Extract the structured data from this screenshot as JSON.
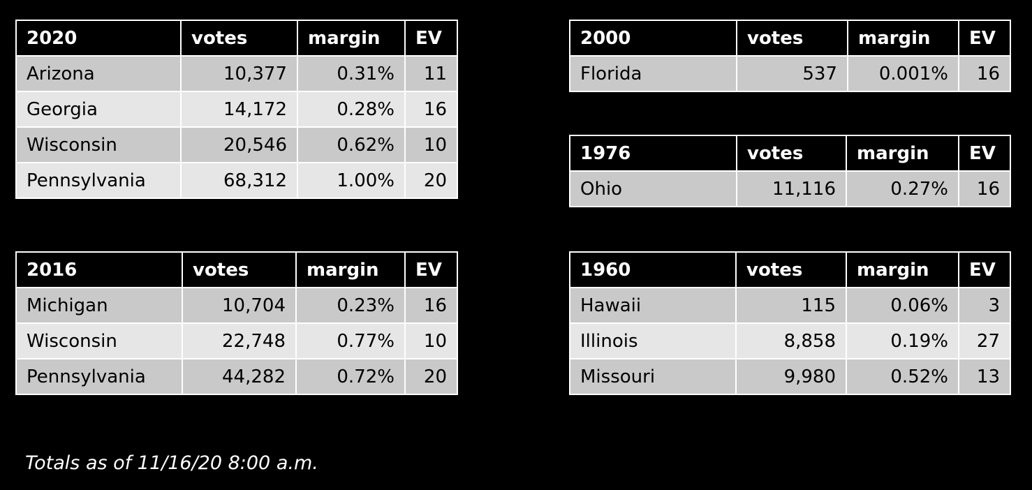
{
  "tables": [
    {
      "header": [
        "2020",
        "votes",
        "margin",
        "EV"
      ],
      "rows": [
        [
          "Arizona",
          "10,377",
          "0.31%",
          "11"
        ],
        [
          "Georgia",
          "14,172",
          "0.28%",
          "16"
        ],
        [
          "Wisconsin",
          "20,546",
          "0.62%",
          "10"
        ],
        [
          "Pennsylvania",
          "68,312",
          "1.00%",
          "20"
        ]
      ]
    },
    {
      "header": [
        "2016",
        "votes",
        "margin",
        "EV"
      ],
      "rows": [
        [
          "Michigan",
          "10,704",
          "0.23%",
          "16"
        ],
        [
          "Wisconsin",
          "22,748",
          "0.77%",
          "10"
        ],
        [
          "Pennsylvania",
          "44,282",
          "0.72%",
          "20"
        ]
      ]
    },
    {
      "header": [
        "2000",
        "votes",
        "margin",
        "EV"
      ],
      "rows": [
        [
          "Florida",
          "537",
          "0.001%",
          "16"
        ]
      ]
    },
    {
      "header": [
        "1976",
        "votes",
        "margin",
        "EV"
      ],
      "rows": [
        [
          "Ohio",
          "11,116",
          "0.27%",
          "16"
        ]
      ]
    },
    {
      "header": [
        "1960",
        "votes",
        "margin",
        "EV"
      ],
      "rows": [
        [
          "Hawaii",
          "115",
          "0.06%",
          "3"
        ],
        [
          "Illinois",
          "8,858",
          "0.19%",
          "27"
        ],
        [
          "Missouri",
          "9,980",
          "0.52%",
          "13"
        ]
      ]
    }
  ],
  "footnote": "Totals as of 11/16/20 8:00 a.m."
}
